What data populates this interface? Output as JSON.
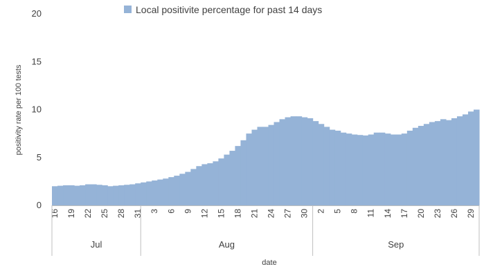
{
  "chart_data": {
    "type": "area",
    "ylabel": "positivity rate per 100 tests",
    "xlabel": "date",
    "ylim": [
      0,
      20
    ],
    "yticks": [
      0,
      5,
      10,
      15,
      20
    ],
    "grid": false,
    "legend_position": "top-center",
    "series": [
      {
        "name": "Local positivite percentage for past 14 days",
        "color": "#95b3d7",
        "dates": [
          "2020-07-16",
          "2020-07-17",
          "2020-07-18",
          "2020-07-19",
          "2020-07-20",
          "2020-07-21",
          "2020-07-22",
          "2020-07-23",
          "2020-07-24",
          "2020-07-25",
          "2020-07-26",
          "2020-07-27",
          "2020-07-28",
          "2020-07-29",
          "2020-07-30",
          "2020-07-31",
          "2020-08-01",
          "2020-08-02",
          "2020-08-03",
          "2020-08-04",
          "2020-08-05",
          "2020-08-06",
          "2020-08-07",
          "2020-08-08",
          "2020-08-09",
          "2020-08-10",
          "2020-08-11",
          "2020-08-12",
          "2020-08-13",
          "2020-08-14",
          "2020-08-15",
          "2020-08-16",
          "2020-08-17",
          "2020-08-18",
          "2020-08-19",
          "2020-08-20",
          "2020-08-21",
          "2020-08-22",
          "2020-08-23",
          "2020-08-24",
          "2020-08-25",
          "2020-08-26",
          "2020-08-27",
          "2020-08-28",
          "2020-08-29",
          "2020-08-30",
          "2020-08-31",
          "2020-09-01",
          "2020-09-02",
          "2020-09-03",
          "2020-09-04",
          "2020-09-05",
          "2020-09-06",
          "2020-09-07",
          "2020-09-08",
          "2020-09-09",
          "2020-09-10",
          "2020-09-11",
          "2020-09-12",
          "2020-09-13",
          "2020-09-14",
          "2020-09-15",
          "2020-09-16",
          "2020-09-17",
          "2020-09-18",
          "2020-09-19",
          "2020-09-20",
          "2020-09-21",
          "2020-09-22",
          "2020-09-23",
          "2020-09-24",
          "2020-09-25",
          "2020-09-26",
          "2020-09-27",
          "2020-09-28",
          "2020-09-29",
          "2020-09-30"
        ],
        "values": [
          2.0,
          2.05,
          2.1,
          2.1,
          2.05,
          2.1,
          2.2,
          2.2,
          2.15,
          2.1,
          2.0,
          2.05,
          2.1,
          2.15,
          2.2,
          2.3,
          2.4,
          2.5,
          2.6,
          2.7,
          2.8,
          2.95,
          3.1,
          3.3,
          3.5,
          3.8,
          4.1,
          4.3,
          4.4,
          4.6,
          4.9,
          5.3,
          5.7,
          6.2,
          6.8,
          7.5,
          7.9,
          8.2,
          8.2,
          8.4,
          8.7,
          9.0,
          9.2,
          9.3,
          9.3,
          9.2,
          9.1,
          8.8,
          8.5,
          8.2,
          7.9,
          7.8,
          7.6,
          7.5,
          7.4,
          7.35,
          7.3,
          7.4,
          7.6,
          7.6,
          7.5,
          7.4,
          7.4,
          7.5,
          7.8,
          8.1,
          8.3,
          8.5,
          8.7,
          8.8,
          9.0,
          8.9,
          9.1,
          9.3,
          9.5,
          9.8,
          10.0
        ]
      }
    ],
    "x_tick_labels": [
      "16",
      "19",
      "22",
      "25",
      "28",
      "31",
      "3",
      "6",
      "9",
      "12",
      "15",
      "18",
      "21",
      "24",
      "27",
      "30",
      "2",
      "5",
      "8",
      "11",
      "14",
      "17",
      "20",
      "23",
      "26",
      "29"
    ],
    "month_labels": [
      "Jul",
      "Aug",
      "Sep"
    ]
  }
}
